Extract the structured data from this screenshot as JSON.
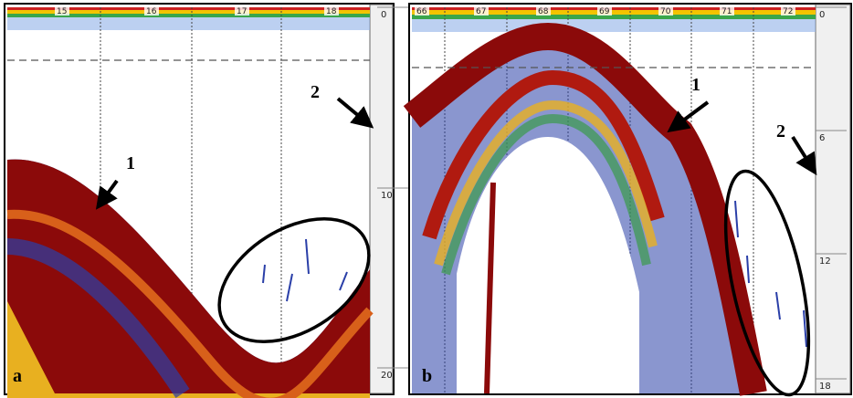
{
  "panels": [
    {
      "label": "a",
      "top_ticks": [
        "15",
        "16",
        "17",
        "18"
      ],
      "depth_ticks": [
        "0",
        "10",
        "20"
      ],
      "annotations": [
        "1",
        "2"
      ]
    },
    {
      "label": "b",
      "top_ticks": [
        "66",
        "67",
        "68",
        "69",
        "70",
        "71",
        "72"
      ],
      "depth_ticks": [
        "0",
        "6",
        "12",
        "18"
      ],
      "annotations": [
        "1",
        "2"
      ]
    }
  ]
}
